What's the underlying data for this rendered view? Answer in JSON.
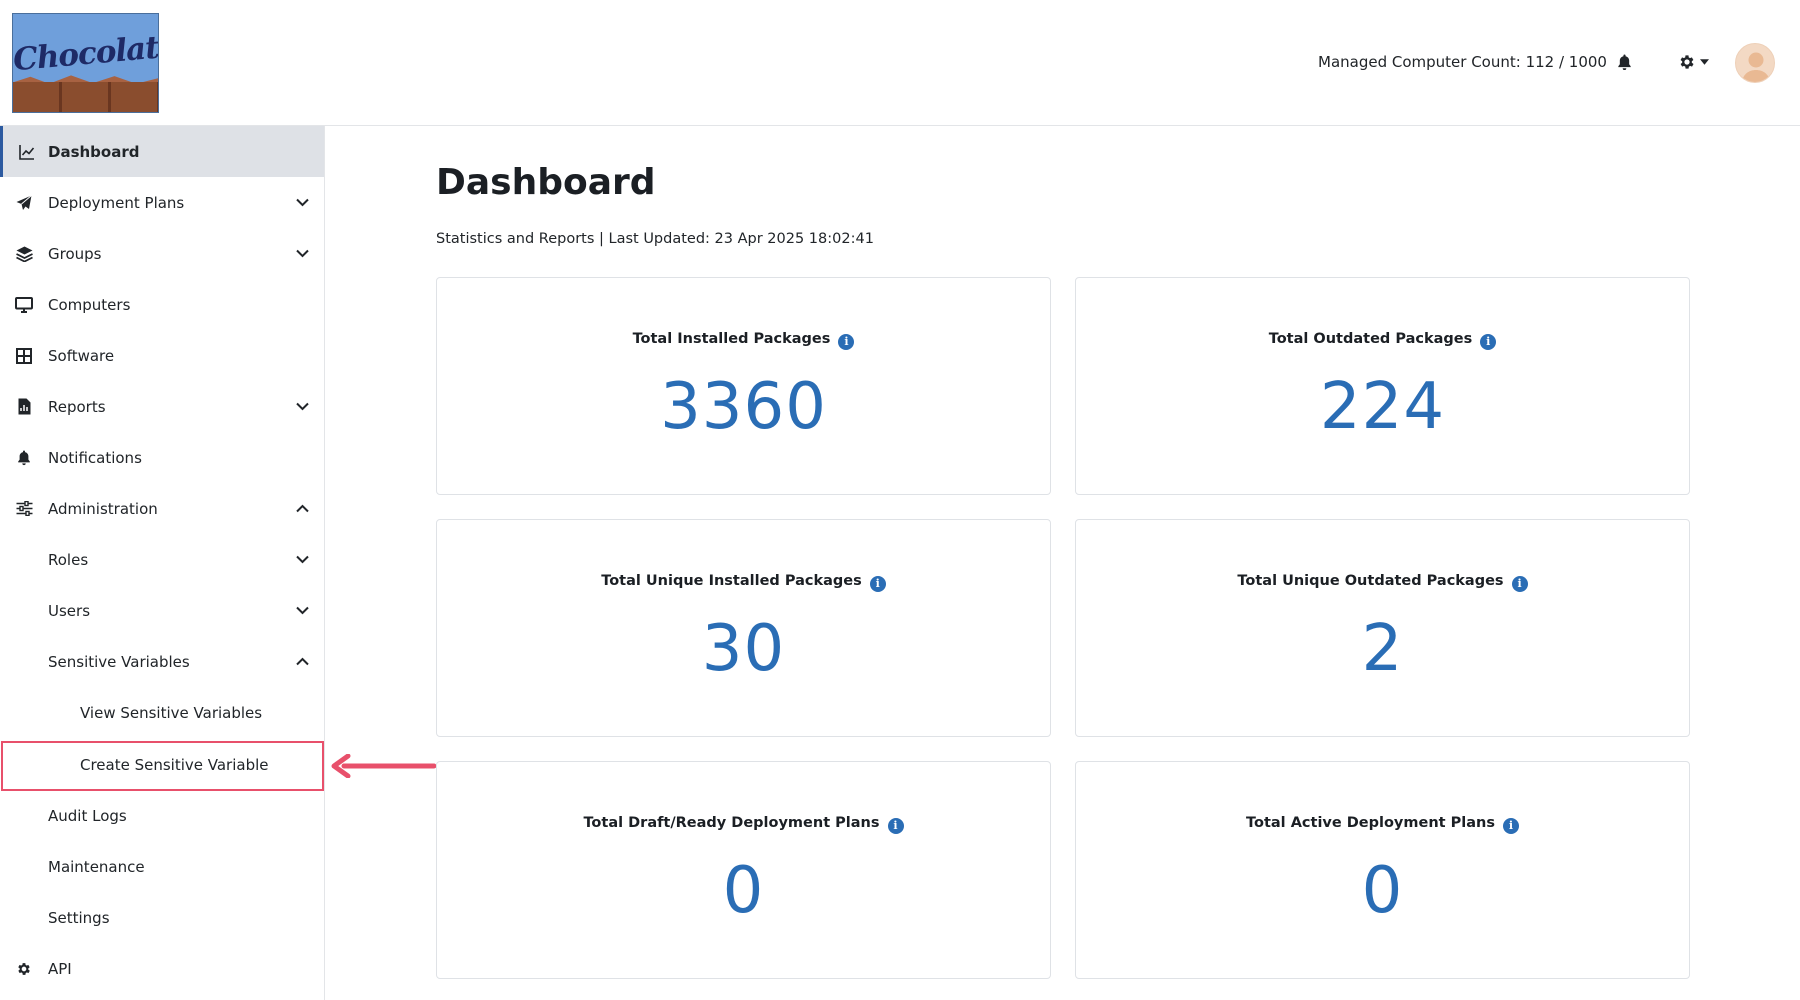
{
  "header": {
    "logo_text": "Chocolatey",
    "managed_computer_count": "Managed Computer Count: 112 / 1000",
    "icons": [
      "bell-icon",
      "gear-icon",
      "caret-down-icon",
      "avatar"
    ]
  },
  "sidebar": {
    "items": [
      {
        "label": "Dashboard",
        "icon": "chart-line-icon",
        "active": true
      },
      {
        "label": "Deployment Plans",
        "icon": "paper-plane-icon",
        "chevron": "down"
      },
      {
        "label": "Groups",
        "icon": "layers-icon",
        "chevron": "down"
      },
      {
        "label": "Computers",
        "icon": "desktop-icon"
      },
      {
        "label": "Software",
        "icon": "grid-icon"
      },
      {
        "label": "Reports",
        "icon": "file-chart-icon",
        "chevron": "down"
      },
      {
        "label": "Notifications",
        "icon": "bell-icon"
      },
      {
        "label": "Administration",
        "icon": "sliders-icon",
        "chevron": "up"
      },
      {
        "label": "Roles",
        "chevron": "down"
      },
      {
        "label": "Users",
        "chevron": "down"
      },
      {
        "label": "Sensitive Variables",
        "chevron": "up"
      },
      {
        "label": "View Sensitive Variables"
      },
      {
        "label": "Create Sensitive Variable",
        "highlighted": true
      },
      {
        "label": "Audit Logs"
      },
      {
        "label": "Maintenance"
      },
      {
        "label": "Settings"
      },
      {
        "label": "API",
        "icon": "gear-icon"
      }
    ]
  },
  "main": {
    "title": "Dashboard",
    "subtitle": "Statistics and Reports | Last Updated: 23 Apr 2025 18:02:41",
    "cards": [
      {
        "title": "Total Installed Packages",
        "value": "3360"
      },
      {
        "title": "Total Outdated Packages",
        "value": "224"
      },
      {
        "title": "Total Unique Installed Packages",
        "value": "30"
      },
      {
        "title": "Total Unique Outdated Packages",
        "value": "2"
      },
      {
        "title": "Total Draft/Ready Deployment Plans",
        "value": "0"
      },
      {
        "title": "Total Active Deployment Plans",
        "value": "0"
      }
    ]
  },
  "colors": {
    "accent_blue": "#2a6db5",
    "active_bg": "#dee1e6",
    "highlight_red": "#e8506b"
  }
}
